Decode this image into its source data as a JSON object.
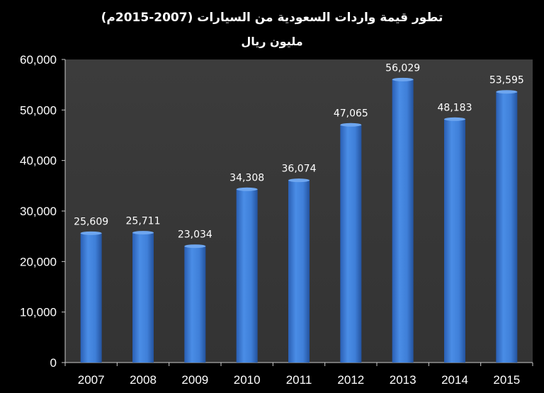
{
  "chart_data": {
    "type": "bar",
    "title": "تطور قيمة واردات السعودية من السيارات (2007-2015م)",
    "subtitle": "مليون ريال",
    "categories": [
      "2007",
      "2008",
      "2009",
      "2010",
      "2011",
      "2012",
      "2013",
      "2014",
      "2015"
    ],
    "values": [
      25609,
      25711,
      23034,
      34308,
      36074,
      47065,
      56029,
      48183,
      53595
    ],
    "value_labels": [
      "25,609",
      "25,711",
      "23,034",
      "34,308",
      "36,074",
      "47,065",
      "56,029",
      "48,183",
      "53,595"
    ],
    "ylim": [
      0,
      60000
    ],
    "yticks": [
      0,
      10000,
      20000,
      30000,
      40000,
      50000,
      60000
    ],
    "ytick_labels": [
      "0",
      "10,000",
      "20,000",
      "30,000",
      "40,000",
      "50,000",
      "60,000"
    ],
    "xlabel": "",
    "ylabel": "",
    "grid": false,
    "legend": "none",
    "colors": {
      "background": "#000000",
      "plot_background": "#3a3a3a",
      "bar": "#3f7fd8",
      "text": "#ffffff"
    }
  }
}
